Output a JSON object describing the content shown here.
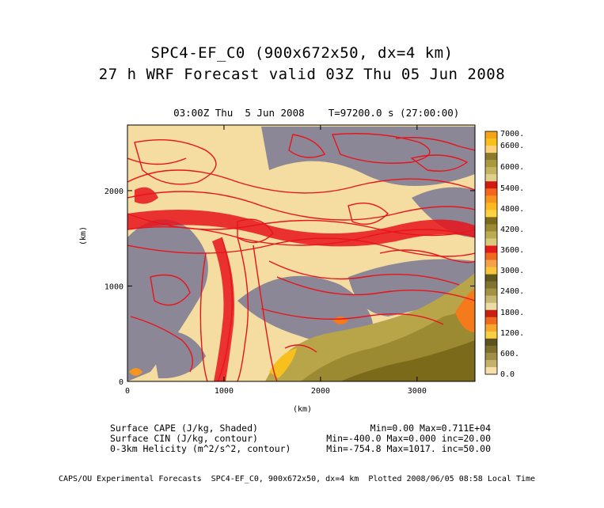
{
  "header": {
    "title_line1": "SPC4-EF_C0 (900x672x50, dx=4 km)",
    "title_line2": "27 h WRF Forecast valid 03Z Thu 05 Jun 2008",
    "valid_time": "03:00Z Thu  5 Jun 2008",
    "model_time": "T=97200.0 s (27:00:00)"
  },
  "chart_data": {
    "type": "heatmap",
    "xlabel": "(km)",
    "ylabel": "(km)",
    "xlim": [
      0,
      3600
    ],
    "ylim": [
      0,
      2688
    ],
    "x_ticks": [
      "0",
      "1000",
      "2000",
      "3000"
    ],
    "y_ticks": [
      "0",
      "1000",
      "2000"
    ],
    "grid": false,
    "fields": [
      {
        "name": "Surface CAPE (J/kg, Shaded)",
        "stats": "Min=0.00 Max=0.711E+04"
      },
      {
        "name": "Surface CIN (J/kg, contour)",
        "stats": "Min=-400.0 Max=0.000 inc=20.00"
      },
      {
        "name": "0-3km Helicity (m^2/s^2, contour)",
        "stats": "Min=-754.8 Max=1017. inc=50.00"
      }
    ],
    "colorbar": {
      "labels": [
        "7000.",
        "6600.",
        "6000.",
        "5400.",
        "4800.",
        "4200.",
        "3600.",
        "3000.",
        "2400.",
        "1800.",
        "1200.",
        "600.",
        "0.0"
      ],
      "colors_top_to_bottom": [
        "#f5a319",
        "#f7c01c",
        "#ffd27a",
        "#8a7a2a",
        "#a99a3e",
        "#c4b460",
        "#e0cf8a",
        "#d01a12",
        "#f4671c",
        "#f7941c",
        "#fbb81f",
        "#fed243",
        "#7a6a1a",
        "#9a8a32",
        "#bcab50",
        "#d8c97e",
        "#e41a1c",
        "#f06a1d",
        "#f4a14a",
        "#fbc53a",
        "#60571c",
        "#807330",
        "#a39246",
        "#c8b86f",
        "#ebdca5",
        "#c81e14",
        "#f06a1d",
        "#f7a72c",
        "#fad042",
        "#5c531c",
        "#7c6f2c",
        "#a08e46",
        "#c4b26c",
        "#f7dfa9"
      ]
    }
  },
  "footer": {
    "credit": "CAPS/OU Experimental Forecasts  SPC4-EF_C0, 900x672x50, dx=4 km  Plotted 2008/06/05 08:58 Local Time"
  }
}
